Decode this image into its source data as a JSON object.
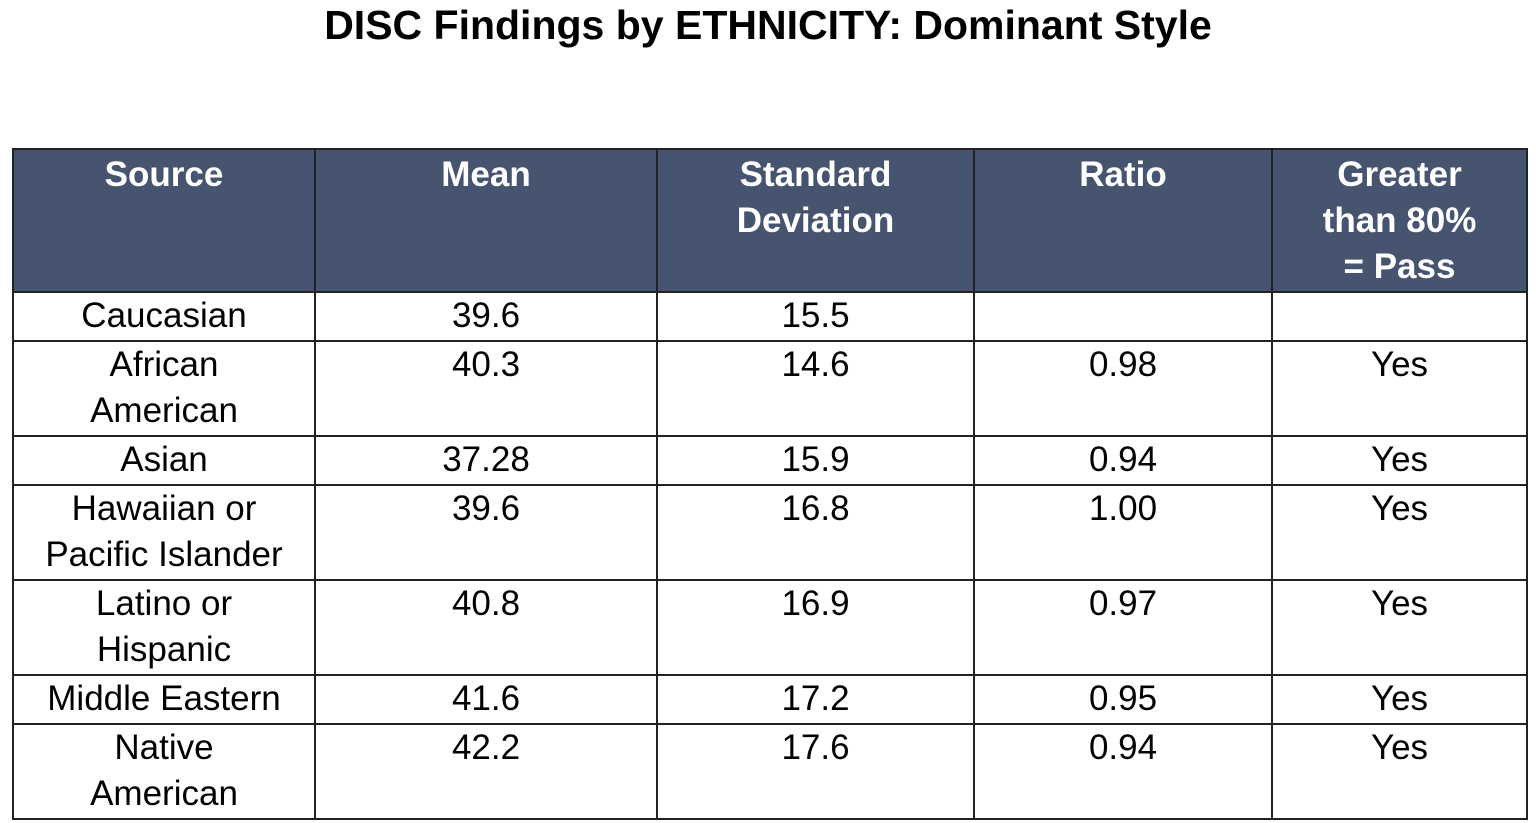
{
  "title": "DISC Findings by ETHNICITY:  Dominant Style",
  "table": {
    "header": [
      "Source",
      "Mean",
      "Standard\nDeviation",
      "Ratio",
      "Greater\nthan 80%\n= Pass"
    ],
    "rows": [
      [
        "Caucasian",
        "39.6",
        "15.5",
        null,
        null
      ],
      [
        "African\nAmerican",
        "40.3",
        "14.6",
        "0.98",
        "Yes"
      ],
      [
        "Asian",
        "37.28",
        "15.9",
        "0.94",
        "Yes"
      ],
      [
        "Hawaiian or\nPacific Islander",
        "39.6",
        "16.8",
        "1.00",
        "Yes"
      ],
      [
        "Latino or\nHispanic",
        "40.8",
        "16.9",
        "0.97",
        "Yes"
      ],
      [
        "Middle Eastern",
        "41.6",
        "17.2",
        "0.95",
        "Yes"
      ],
      [
        "Native\nAmerican",
        "42.2",
        "17.6",
        "0.94",
        "Yes"
      ]
    ]
  }
}
